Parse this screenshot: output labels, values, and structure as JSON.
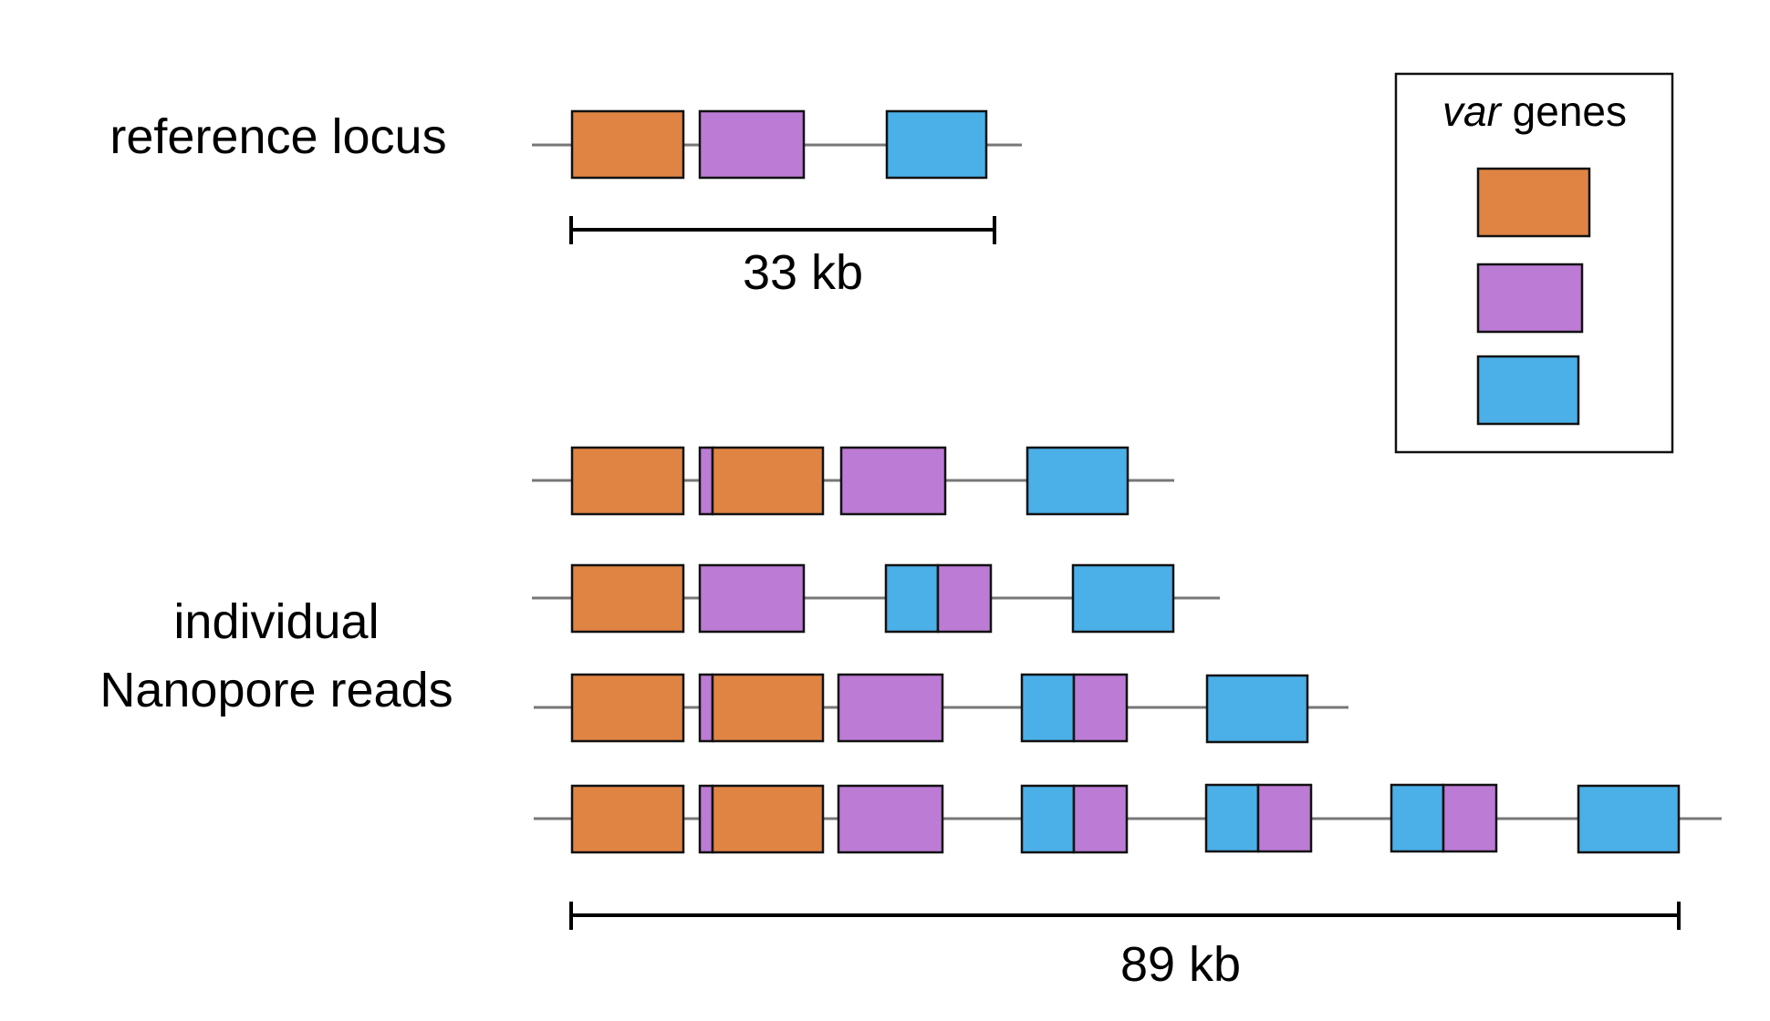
{
  "labels": {
    "reference": "reference locus",
    "reads_line1": "individual",
    "reads_line2": "Nanopore reads",
    "legend_title_italic": "var",
    "legend_title_rest": " genes",
    "scale_reference": "33 kb",
    "scale_reads": "89 kb"
  },
  "colors": {
    "orange": "#E08444",
    "purple": "#BC7BD4",
    "blue": "#4BAFE8",
    "backbone": "#777777"
  },
  "legend": {
    "items": [
      {
        "icon": "orange-var-gene-swatch",
        "color": "#E08444"
      },
      {
        "icon": "purple-var-gene-swatch",
        "color": "#BC7BD4"
      },
      {
        "icon": "blue-var-gene-swatch",
        "color": "#4BAFE8"
      }
    ]
  },
  "reference_locus": {
    "genes": [
      "orange",
      "purple",
      "blue"
    ]
  },
  "nanopore_reads": [
    {
      "genes": [
        "orange",
        "purple+orange",
        "purple",
        "blue"
      ]
    },
    {
      "genes": [
        "orange",
        "purple",
        "blue+purple",
        "blue"
      ]
    },
    {
      "genes": [
        "orange",
        "purple+orange",
        "purple",
        "blue+purple",
        "blue"
      ]
    },
    {
      "genes": [
        "orange",
        "purple+orange",
        "purple",
        "blue+purple",
        "blue+purple",
        "blue+purple",
        "blue"
      ]
    }
  ]
}
